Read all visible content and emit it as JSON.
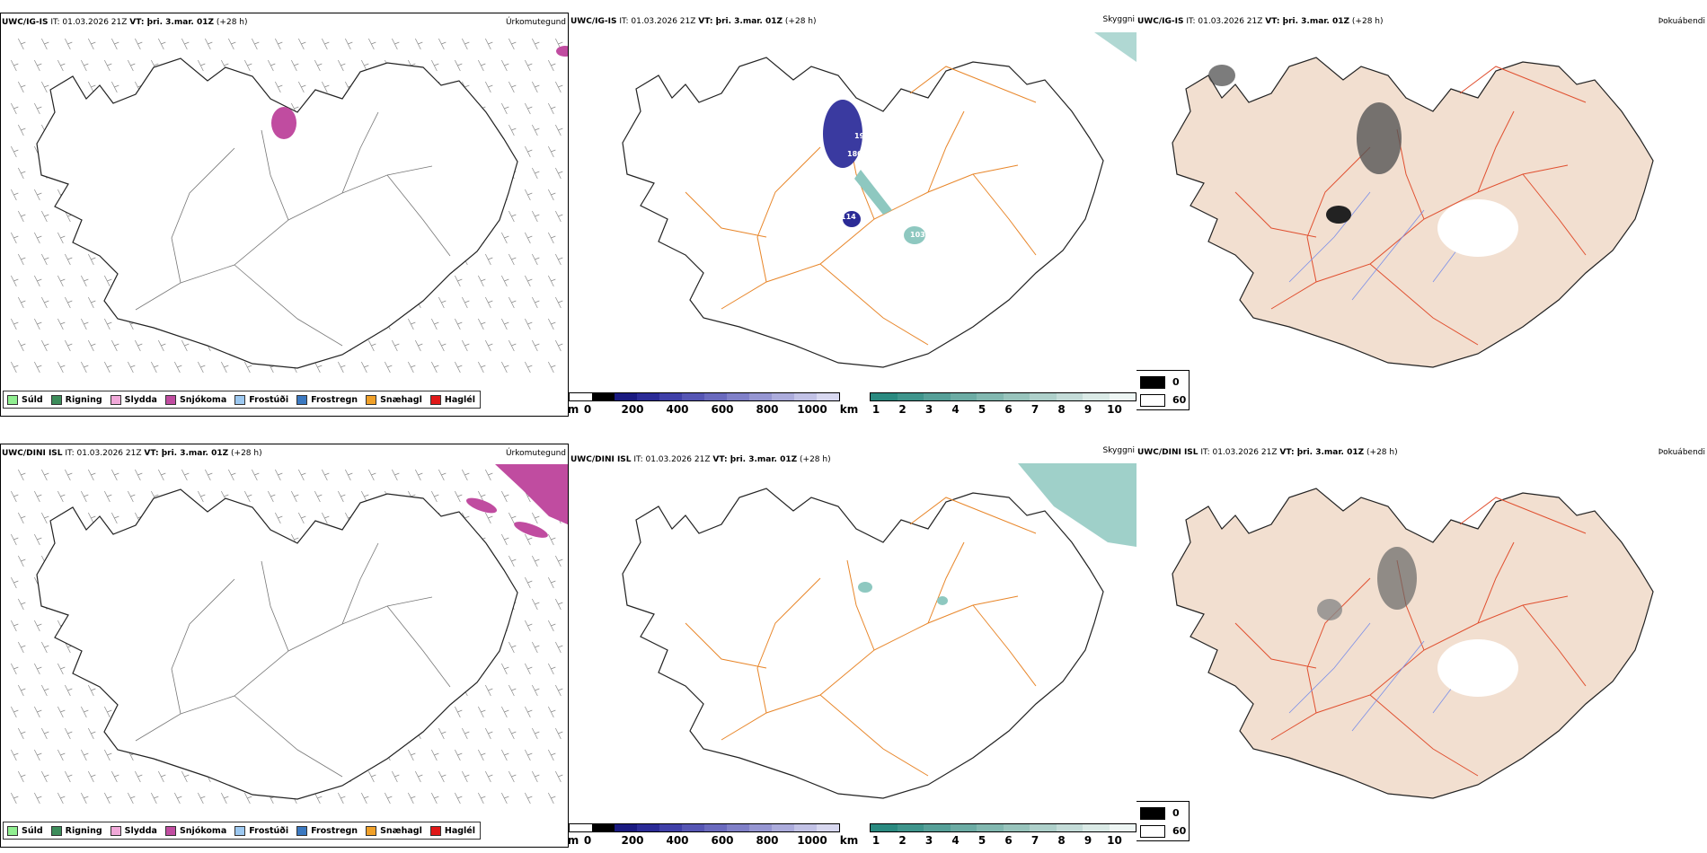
{
  "rows": [
    {
      "model": "UWC/IG-IS",
      "it_label": "IT:",
      "it_value": "01.03.2026 21Z",
      "vt_label": "VT: þri. 3.mar. 01Z",
      "lead": "(+28 h)"
    },
    {
      "model": "UWC/DINI ISL",
      "it_label": "IT:",
      "it_value": "01.03.2026 21Z",
      "vt_label": "VT: þri. 3.mar. 01Z",
      "lead": "(+28 h)"
    }
  ],
  "panels": {
    "precip_type": "Úrkomutegund",
    "visibility": "Skyggni",
    "fog": "Þokuábendi"
  },
  "precip_legend": [
    {
      "label": "Súld",
      "color": "#90ee90"
    },
    {
      "label": "Rigning",
      "color": "#3c8c5a"
    },
    {
      "label": "Slydda",
      "color": "#f0a8d8"
    },
    {
      "label": "Snjókoma",
      "color": "#c04ca0"
    },
    {
      "label": "Frostúði",
      "color": "#9cc8f0"
    },
    {
      "label": "Frostregn",
      "color": "#3a78c0"
    },
    {
      "label": "Snæhagl",
      "color": "#f0a028"
    },
    {
      "label": "Haglél",
      "color": "#e01818"
    }
  ],
  "height_scale": {
    "unit": "m",
    "ticks": [
      "0",
      "200",
      "400",
      "600",
      "800",
      "1000"
    ],
    "colors": [
      "#ffffff",
      "#000000",
      "#1a1a80",
      "#2b2b96",
      "#4040a8",
      "#5656b4",
      "#6a6abe",
      "#8080c8",
      "#9696d2",
      "#acacdc",
      "#c2c2e6",
      "#d8d8f0"
    ]
  },
  "visibility_scale": {
    "unit": "km",
    "ticks": [
      "1",
      "2",
      "3",
      "4",
      "5",
      "6",
      "7",
      "8",
      "9",
      "10"
    ],
    "colors": [
      "#2a8a80",
      "#3f958c",
      "#56a098",
      "#6cacA4",
      "#82b8b0",
      "#98c4bc",
      "#aed0ca",
      "#c4dcd8",
      "#daeae6",
      "#eef6f4"
    ]
  },
  "fog_scale": {
    "items": [
      {
        "label": "0",
        "color": "#000000"
      },
      {
        "label": "60",
        "color": "#ffffff"
      }
    ]
  },
  "visibility_values_top": [
    "193",
    "180",
    "114",
    "103"
  ]
}
